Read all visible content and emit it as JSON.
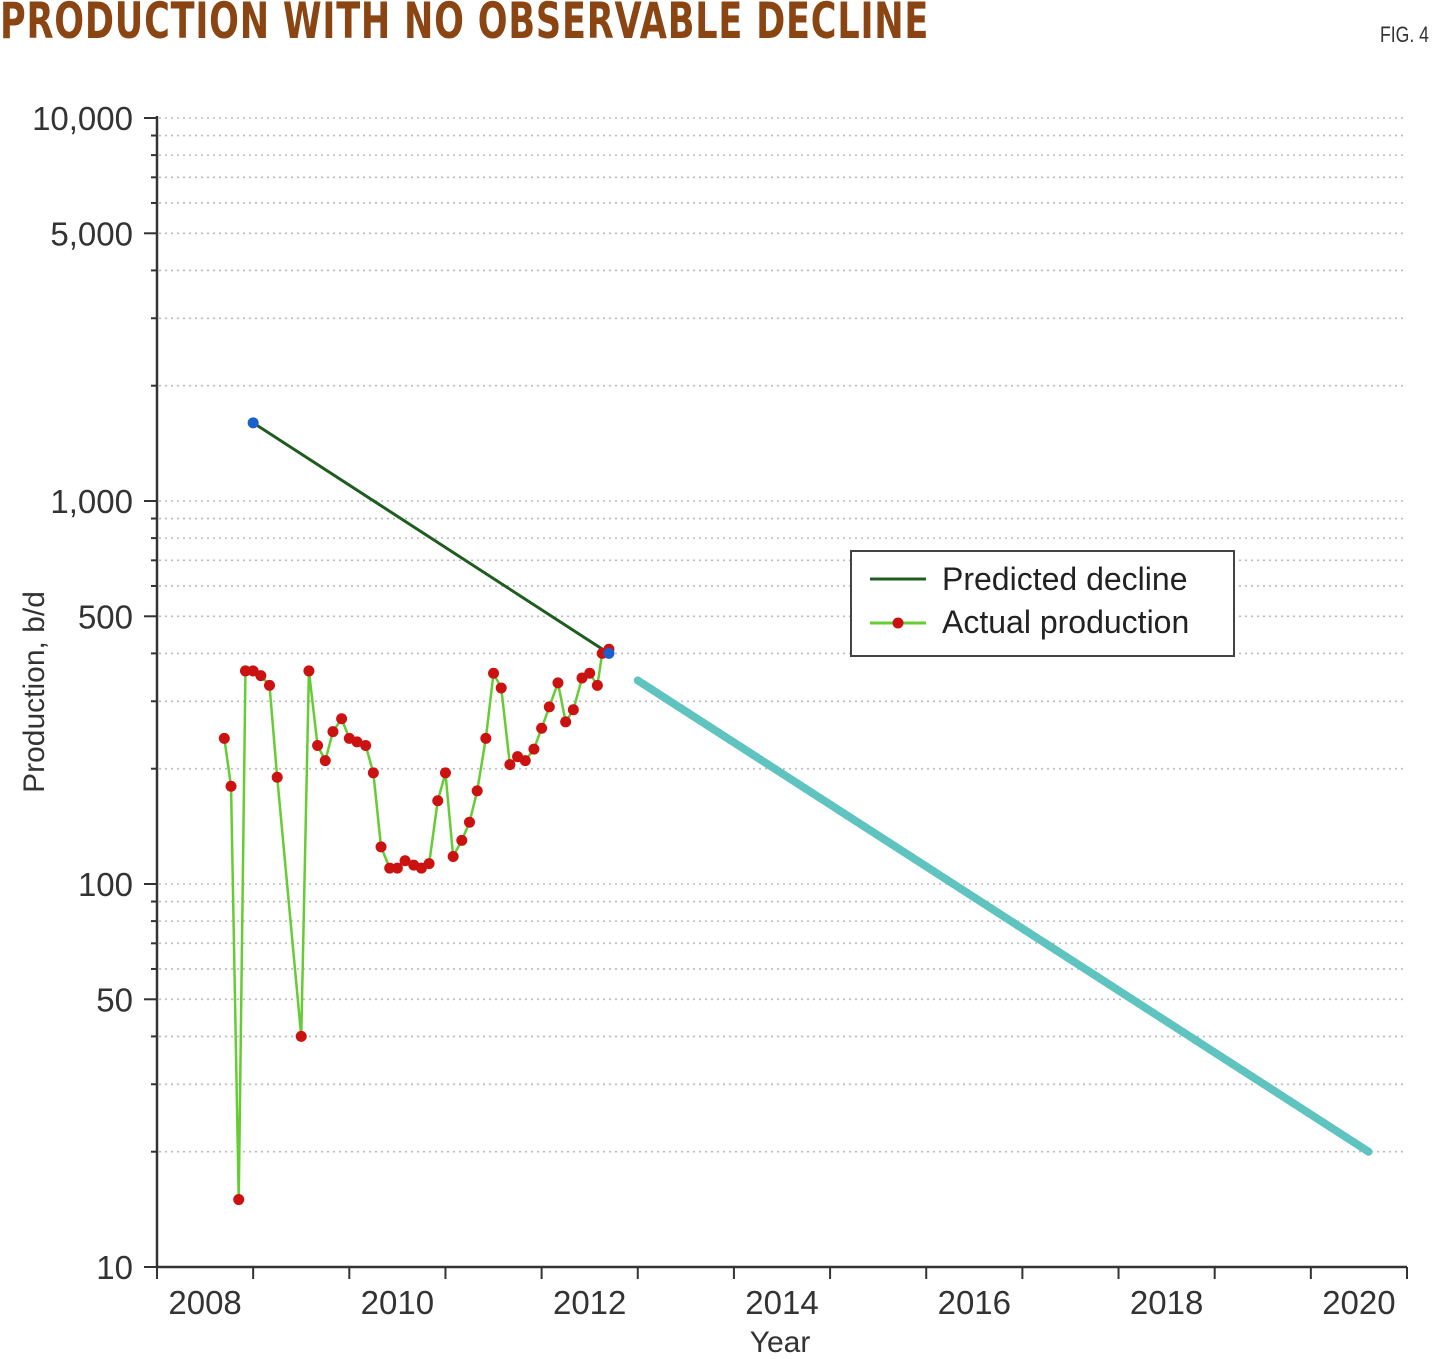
{
  "title": "PRODUCTION WITH NO OBSERVABLE DECLINE",
  "fig_label": "FIG. 4",
  "chart_data": {
    "type": "line",
    "title": "PRODUCTION WITH NO OBSERVABLE DECLINE",
    "xlabel": "Year",
    "ylabel": "Production, b/d",
    "xlim": [
      2008,
      2021
    ],
    "ylim": [
      10,
      10000
    ],
    "yscale": "log",
    "x_ticks": [
      2008,
      2009,
      2010,
      2011,
      2012,
      2013,
      2014,
      2015,
      2016,
      2017,
      2018,
      2019,
      2020,
      2021
    ],
    "x_tick_labels": [
      "2008",
      "2010",
      "2012",
      "2014",
      "2016",
      "2018",
      "2020"
    ],
    "x_tick_label_values": [
      2008.5,
      2010.5,
      2012.5,
      2014.5,
      2016.5,
      2018.5,
      2020.5
    ],
    "y_tick_labels": [
      "10,000",
      "5,000",
      "1,000",
      "500",
      "100",
      "50",
      "10"
    ],
    "y_tick_values": [
      10000,
      5000,
      1000,
      500,
      100,
      50,
      10
    ],
    "colors": {
      "title": "#8b4513",
      "predicted": "#1f5c1f",
      "actual_line": "#66cc33",
      "actual_marker": "#cc1111",
      "endpoint_marker": "#1a5fcc",
      "forecast": "#5fc4c0",
      "grid": "#bbbbbb",
      "axis": "#333333"
    },
    "legend": {
      "placement": "right-middle",
      "entries": [
        "Predicted decline",
        "Actual production"
      ]
    },
    "series": [
      {
        "name": "Predicted decline",
        "style": "line",
        "x": [
          2009.0,
          2012.7
        ],
        "y": [
          1600,
          400
        ]
      },
      {
        "name": "Actual production",
        "style": "line+markers",
        "x": [
          2008.7,
          2008.77,
          2008.85,
          2008.92,
          2009.0,
          2009.08,
          2009.17,
          2009.25,
          2009.5,
          2009.58,
          2009.67,
          2009.75,
          2009.83,
          2009.92,
          2010.0,
          2010.08,
          2010.17,
          2010.25,
          2010.33,
          2010.42,
          2010.5,
          2010.58,
          2010.67,
          2010.75,
          2010.83,
          2010.92,
          2011.0,
          2011.08,
          2011.17,
          2011.25,
          2011.33,
          2011.42,
          2011.5,
          2011.58,
          2011.67,
          2011.75,
          2011.83,
          2011.92,
          2012.0,
          2012.08,
          2012.17,
          2012.25,
          2012.33,
          2012.42,
          2012.5,
          2012.58,
          2012.63,
          2012.7
        ],
        "y": [
          240,
          180,
          15,
          360,
          360,
          350,
          330,
          190,
          40,
          360,
          230,
          210,
          250,
          270,
          240,
          235,
          230,
          195,
          125,
          110,
          110,
          115,
          112,
          110,
          113,
          165,
          195,
          118,
          130,
          145,
          175,
          240,
          355,
          325,
          205,
          215,
          210,
          225,
          255,
          290,
          335,
          265,
          285,
          345,
          355,
          330,
          400,
          410
        ]
      },
      {
        "name": "Forecast",
        "style": "thick-line",
        "x": [
          2013.0,
          2020.6
        ],
        "y": [
          340,
          20
        ]
      }
    ],
    "endpoint_markers": [
      {
        "x": 2009.0,
        "y": 1600
      },
      {
        "x": 2012.7,
        "y": 400
      }
    ]
  }
}
